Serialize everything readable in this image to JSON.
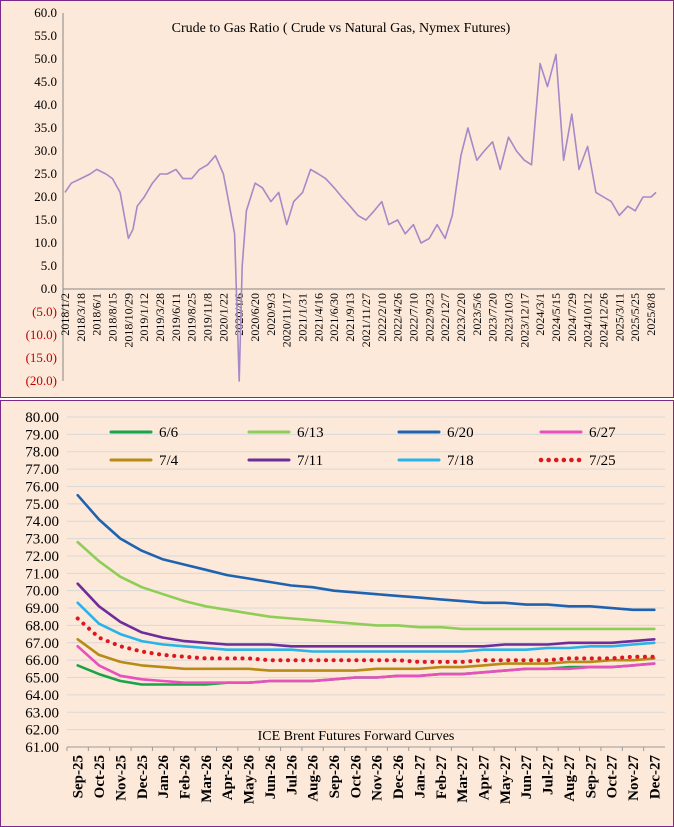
{
  "chart_data": [
    {
      "type": "line",
      "title": "Crude to Gas Ratio ( Crude vs Natural Gas, Nymex Futures)",
      "xlabel": "",
      "ylabel": "",
      "ylim": [
        -20,
        60
      ],
      "grid": false,
      "y_ticks": [
        "60.0",
        "55.0",
        "50.0",
        "45.0",
        "40.0",
        "35.0",
        "30.0",
        "25.0",
        "20.0",
        "15.0",
        "10.0",
        "5.0",
        "0.0",
        "(5.0)",
        "(10.0)",
        "(15.0)",
        "(20.0)"
      ],
      "y_tick_values": [
        60,
        55,
        50,
        45,
        40,
        35,
        30,
        25,
        20,
        15,
        10,
        5,
        0,
        -5,
        -10,
        -15,
        -20
      ],
      "negative_tick_color": "#c00000",
      "x_ticks": [
        "2018/1/2",
        "2018/3/18",
        "2018/6/1",
        "2018/8/15",
        "2018/10/29",
        "2019/1/12",
        "2019/3/28",
        "2019/6/11",
        "2019/8/25",
        "2019/11/8",
        "2020/1/22",
        "2020/4/6",
        "2020/6/20",
        "2020/9/3",
        "2020/11/17",
        "2021/1/31",
        "2021/4/16",
        "2021/6/30",
        "2021/9/13",
        "2021/11/27",
        "2022/2/10",
        "2022/4/26",
        "2022/7/10",
        "2022/9/23",
        "2022/12/7",
        "2023/2/20",
        "2023/5/6",
        "2023/7/20",
        "2023/10/3",
        "2023/12/17",
        "2024/3/1",
        "2024/5/15",
        "2024/7/29",
        "2024/10/12",
        "2024/12/26",
        "2025/3/11",
        "2025/5/25",
        "2025/8/8"
      ],
      "series": [
        {
          "color": "#a58ac8",
          "x": [
            "2018/1/2",
            "2018/2/1",
            "2018/3/18",
            "2018/5/1",
            "2018/6/1",
            "2018/7/15",
            "2018/8/15",
            "2018/9/20",
            "2018/10/29",
            "2018/11/20",
            "2018/12/10",
            "2019/1/12",
            "2019/2/20",
            "2019/3/28",
            "2019/5/1",
            "2019/6/11",
            "2019/7/15",
            "2019/8/25",
            "2019/10/1",
            "2019/11/8",
            "2019/12/15",
            "2020/1/22",
            "2020/2/20",
            "2020/3/15",
            "2020/4/6",
            "2020/4/20",
            "2020/5/10",
            "2020/6/20",
            "2020/7/25",
            "2020/9/3",
            "2020/10/10",
            "2020/11/17",
            "2020/12/20",
            "2021/1/31",
            "2021/3/10",
            "2021/4/16",
            "2021/5/20",
            "2021/6/30",
            "2021/8/5",
            "2021/9/13",
            "2021/10/20",
            "2021/11/27",
            "2022/1/5",
            "2022/2/10",
            "2022/3/15",
            "2022/4/26",
            "2022/6/1",
            "2022/7/10",
            "2022/8/15",
            "2022/9/23",
            "2022/10/30",
            "2022/12/7",
            "2023/1/10",
            "2023/2/20",
            "2023/3/25",
            "2023/5/6",
            "2023/6/10",
            "2023/7/20",
            "2023/8/25",
            "2023/10/3",
            "2023/11/10",
            "2023/12/17",
            "2024/1/20",
            "2024/3/1",
            "2024/4/5",
            "2024/5/15",
            "2024/6/20",
            "2024/7/29",
            "2024/9/1",
            "2024/10/12",
            "2024/11/20",
            "2024/12/26",
            "2025/2/1",
            "2025/3/11",
            "2025/4/20",
            "2025/5/25",
            "2025/7/1",
            "2025/8/8",
            "2025/9/1"
          ],
          "values": [
            21,
            23,
            24,
            25,
            26,
            25,
            24,
            21,
            11,
            13,
            18,
            20,
            23,
            25,
            25,
            26,
            24,
            24,
            26,
            27,
            29,
            25,
            18,
            12,
            -20,
            5,
            17,
            23,
            22,
            19,
            21,
            14,
            19,
            21,
            26,
            25,
            24,
            22,
            20,
            18,
            16,
            15,
            17,
            19,
            14,
            15,
            12,
            14,
            10,
            11,
            14,
            11,
            16,
            29,
            35,
            28,
            30,
            32,
            26,
            33,
            30,
            28,
            27,
            49,
            44,
            51,
            28,
            38,
            26,
            31,
            21,
            20,
            19,
            16,
            18,
            17,
            20,
            20,
            21
          ]
        }
      ]
    },
    {
      "type": "line",
      "title": "",
      "annotation": "ICE Brent Futures Forward Curves",
      "xlabel": "",
      "ylabel": "",
      "ylim": [
        61,
        80
      ],
      "grid": true,
      "y_ticks": [
        "80.00",
        "79.00",
        "78.00",
        "77.00",
        "76.00",
        "75.00",
        "74.00",
        "73.00",
        "72.00",
        "71.00",
        "70.00",
        "69.00",
        "68.00",
        "67.00",
        "66.00",
        "65.00",
        "64.00",
        "63.00",
        "62.00",
        "61.00"
      ],
      "y_tick_values": [
        80,
        79,
        78,
        77,
        76,
        75,
        74,
        73,
        72,
        71,
        70,
        69,
        68,
        67,
        66,
        65,
        64,
        63,
        62,
        61
      ],
      "categories": [
        "Sep-25",
        "Oct-25",
        "Nov-25",
        "Dec-25",
        "Jan-26",
        "Feb-26",
        "Mar-26",
        "Apr-26",
        "May-26",
        "Jun-26",
        "Jul-26",
        "Aug-26",
        "Sep-26",
        "Oct-26",
        "Nov-26",
        "Dec-26",
        "Jan-27",
        "Feb-27",
        "Mar-27",
        "Apr-27",
        "May-27",
        "Jun-27",
        "Jul-27",
        "Aug-27",
        "Sep-27",
        "Oct-27",
        "Nov-27",
        "Dec-27"
      ],
      "legend_placement": "top",
      "series": [
        {
          "name": "6/6",
          "color": "#1aa34a",
          "dash": "solid",
          "values": [
            65.7,
            65.2,
            64.8,
            64.6,
            64.6,
            64.6,
            64.6,
            64.7,
            64.7,
            64.8,
            64.8,
            64.8,
            64.9,
            65.0,
            65.0,
            65.1,
            65.1,
            65.2,
            65.2,
            65.3,
            65.4,
            65.5,
            65.5,
            65.6,
            65.6,
            65.6,
            65.7,
            65.8
          ]
        },
        {
          "name": "6/13",
          "color": "#8fcd59",
          "dash": "solid",
          "values": [
            72.8,
            71.7,
            70.8,
            70.2,
            69.8,
            69.4,
            69.1,
            68.9,
            68.7,
            68.5,
            68.4,
            68.3,
            68.2,
            68.1,
            68.0,
            68.0,
            67.9,
            67.9,
            67.8,
            67.8,
            67.8,
            67.8,
            67.8,
            67.8,
            67.8,
            67.8,
            67.8,
            67.8
          ]
        },
        {
          "name": "6/20",
          "color": "#1f63b0",
          "dash": "solid",
          "values": [
            75.5,
            74.1,
            73.0,
            72.3,
            71.8,
            71.5,
            71.2,
            70.9,
            70.7,
            70.5,
            70.3,
            70.2,
            70.0,
            69.9,
            69.8,
            69.7,
            69.6,
            69.5,
            69.4,
            69.3,
            69.3,
            69.2,
            69.2,
            69.1,
            69.1,
            69.0,
            68.9,
            68.9
          ]
        },
        {
          "name": "6/27",
          "color": "#e94fbd",
          "dash": "solid",
          "values": [
            66.8,
            65.7,
            65.1,
            64.9,
            64.8,
            64.7,
            64.7,
            64.7,
            64.7,
            64.8,
            64.8,
            64.8,
            64.9,
            65.0,
            65.0,
            65.1,
            65.1,
            65.2,
            65.2,
            65.3,
            65.4,
            65.5,
            65.5,
            65.5,
            65.6,
            65.6,
            65.7,
            65.8
          ]
        },
        {
          "name": "7/4",
          "color": "#b88a16",
          "dash": "solid",
          "values": [
            67.2,
            66.3,
            65.9,
            65.7,
            65.6,
            65.5,
            65.5,
            65.5,
            65.5,
            65.4,
            65.4,
            65.4,
            65.4,
            65.4,
            65.5,
            65.5,
            65.5,
            65.6,
            65.6,
            65.7,
            65.8,
            65.8,
            65.8,
            65.9,
            65.9,
            66.0,
            66.0,
            66.1
          ]
        },
        {
          "name": "7/11",
          "color": "#6e2d9a",
          "dash": "solid",
          "values": [
            70.4,
            69.1,
            68.2,
            67.6,
            67.3,
            67.1,
            67.0,
            66.9,
            66.9,
            66.9,
            66.8,
            66.8,
            66.8,
            66.8,
            66.8,
            66.8,
            66.8,
            66.8,
            66.8,
            66.8,
            66.9,
            66.9,
            66.9,
            67.0,
            67.0,
            67.0,
            67.1,
            67.2
          ]
        },
        {
          "name": "7/18",
          "color": "#29b3e8",
          "dash": "solid",
          "values": [
            69.3,
            68.1,
            67.5,
            67.1,
            66.9,
            66.8,
            66.7,
            66.6,
            66.6,
            66.6,
            66.6,
            66.5,
            66.5,
            66.5,
            66.5,
            66.5,
            66.5,
            66.5,
            66.5,
            66.6,
            66.6,
            66.6,
            66.7,
            66.7,
            66.8,
            66.8,
            66.9,
            67.0
          ]
        },
        {
          "name": "7/25",
          "color": "#e0161f",
          "dash": "dotted",
          "values": [
            68.4,
            67.3,
            66.8,
            66.5,
            66.3,
            66.2,
            66.1,
            66.1,
            66.1,
            66.0,
            66.0,
            66.0,
            66.0,
            66.0,
            66.0,
            66.0,
            65.9,
            65.9,
            65.9,
            66.0,
            66.0,
            66.0,
            66.0,
            66.1,
            66.1,
            66.1,
            66.2,
            66.2
          ]
        }
      ]
    }
  ]
}
